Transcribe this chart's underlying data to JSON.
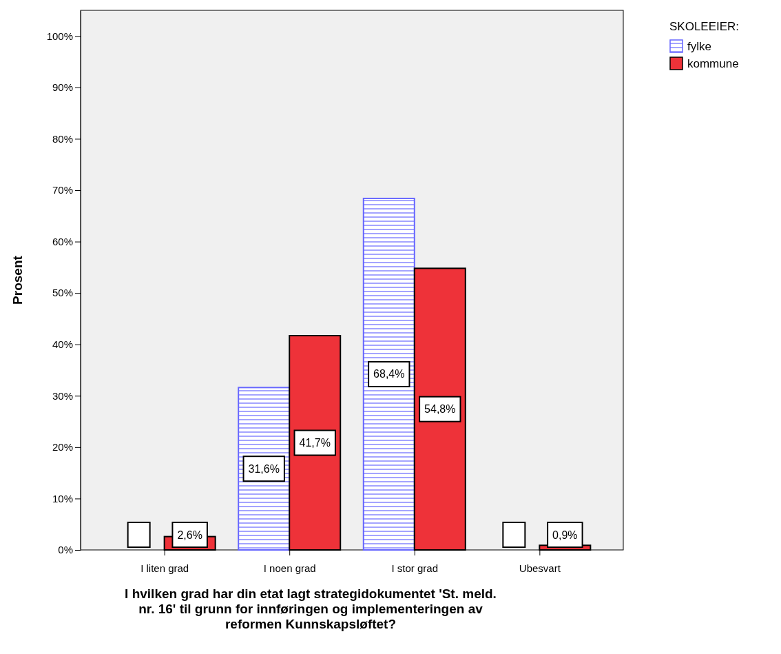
{
  "chart_data": {
    "type": "bar",
    "xlabel": "I hvilken grad har din etat lagt strategidokumentet 'St. meld. nr. 16' til grunn for innføringen og implementeringen av reformen Kunnskapsløftet?",
    "ylabel": "Prosent",
    "legend_title": "SKOLEEIER:",
    "categories": [
      "I liten grad",
      "I noen grad",
      "I stor grad",
      "Ubesvart"
    ],
    "series": [
      {
        "name": "fylke",
        "color": "#6666ff",
        "values": [
          0,
          31.6,
          68.4,
          0
        ],
        "value_labels": [
          null,
          "31,6%",
          "68,4%",
          null
        ]
      },
      {
        "name": "kommune",
        "color": "#ee3239",
        "values": [
          2.6,
          41.7,
          54.8,
          0.9
        ],
        "value_labels": [
          "2,6%",
          "41,7%",
          "54,8%",
          "0,9%"
        ]
      }
    ],
    "ylim": [
      0,
      105
    ],
    "yticks": [
      {
        "value": 0,
        "label": "0%"
      },
      {
        "value": 10,
        "label": "10%"
      },
      {
        "value": 20,
        "label": "20%"
      },
      {
        "value": 30,
        "label": "30%"
      },
      {
        "value": 40,
        "label": "40%"
      },
      {
        "value": 50,
        "label": "50%"
      },
      {
        "value": 60,
        "label": "60%"
      },
      {
        "value": 70,
        "label": "70%"
      },
      {
        "value": 80,
        "label": "80%"
      },
      {
        "value": 90,
        "label": "90%"
      },
      {
        "value": 100,
        "label": "100%"
      }
    ],
    "grid": false,
    "legend": "top right"
  }
}
